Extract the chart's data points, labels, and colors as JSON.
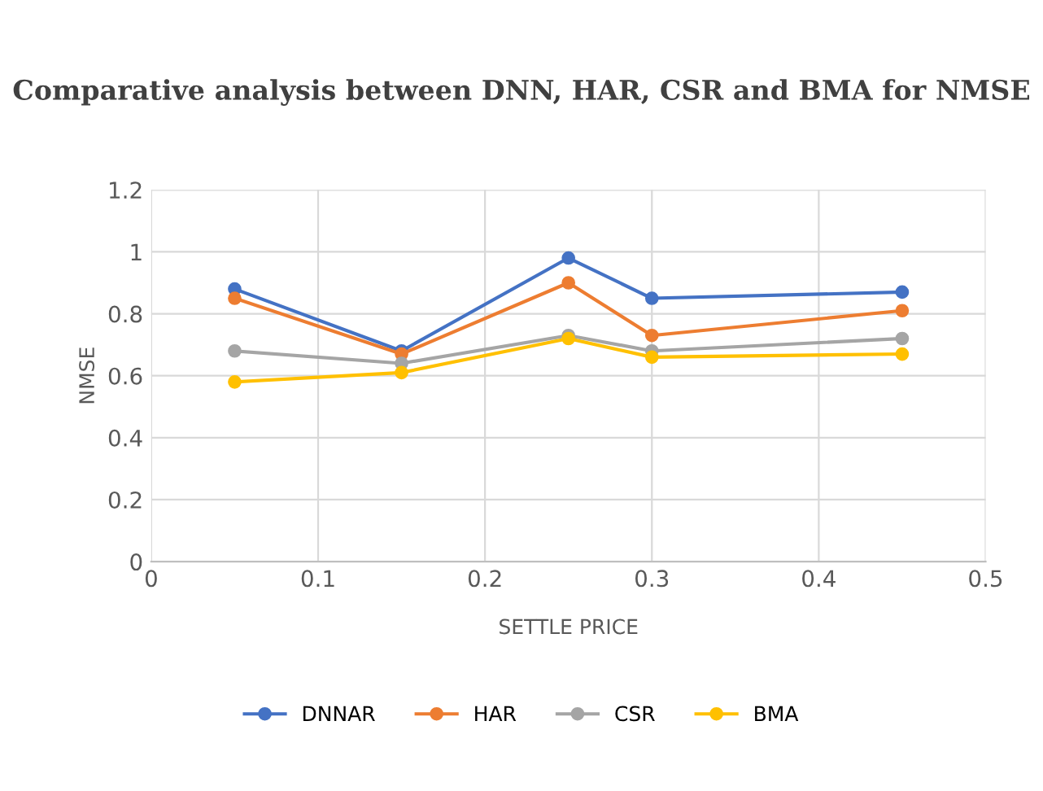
{
  "chart_data": {
    "type": "line",
    "title": "Comparative analysis between DNN, HAR, CSR and BMA for NMSE",
    "xlabel": "SETTLE PRICE",
    "ylabel": "NMSE",
    "x": [
      0.05,
      0.15,
      0.25,
      0.3,
      0.45
    ],
    "series": [
      {
        "name": "DNNAR",
        "color": "#4472c4",
        "values": [
          0.88,
          0.68,
          0.98,
          0.85,
          0.87
        ]
      },
      {
        "name": "HAR",
        "color": "#ed7d31",
        "values": [
          0.85,
          0.67,
          0.9,
          0.73,
          0.81
        ]
      },
      {
        "name": "CSR",
        "color": "#a5a5a5",
        "values": [
          0.68,
          0.64,
          0.73,
          0.68,
          0.72
        ]
      },
      {
        "name": "BMA",
        "color": "#ffc000",
        "values": [
          0.58,
          0.61,
          0.72,
          0.66,
          0.67
        ]
      }
    ],
    "xlim": [
      0,
      0.5
    ],
    "xticks": [
      0,
      0.1,
      0.2,
      0.3,
      0.4,
      0.5
    ],
    "ylim": [
      0,
      1.2
    ],
    "yticks": [
      0,
      0.2,
      0.4,
      0.6,
      0.8,
      1,
      1.2
    ],
    "grid": true,
    "legend": "bottom",
    "marker": "circle",
    "line_style": "solid"
  }
}
